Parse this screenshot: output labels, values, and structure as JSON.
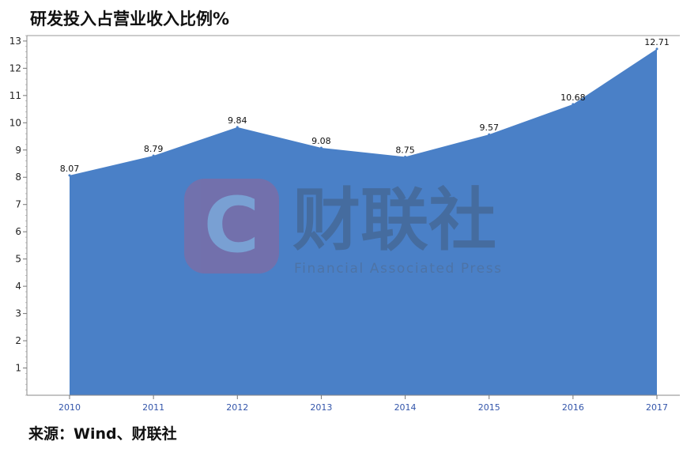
{
  "chart_data": {
    "type": "area",
    "title": "研发投入占营业收入比例%",
    "categories": [
      "2010",
      "2011",
      "2012",
      "2013",
      "2014",
      "2015",
      "2016",
      "2017"
    ],
    "values": [
      8.07,
      8.79,
      9.84,
      9.08,
      8.75,
      9.57,
      10.68,
      12.71
    ],
    "data_labels": [
      "8.07",
      "8.79",
      "9.84",
      "9.08",
      "8.75",
      "9.57",
      "10.68",
      "12.71"
    ],
    "y_ticks": [
      "1",
      "2",
      "3",
      "4",
      "5",
      "6",
      "7",
      "8",
      "9",
      "10",
      "11",
      "12",
      "13"
    ],
    "ylim": [
      0,
      13.2
    ],
    "grid": false,
    "legend": "none",
    "color": "#4a80c7"
  },
  "source": "来源：Wind、财联社",
  "watermark": {
    "logo_letter": "C",
    "brand_name": "财联社",
    "tagline": "Financial Associated Press"
  }
}
